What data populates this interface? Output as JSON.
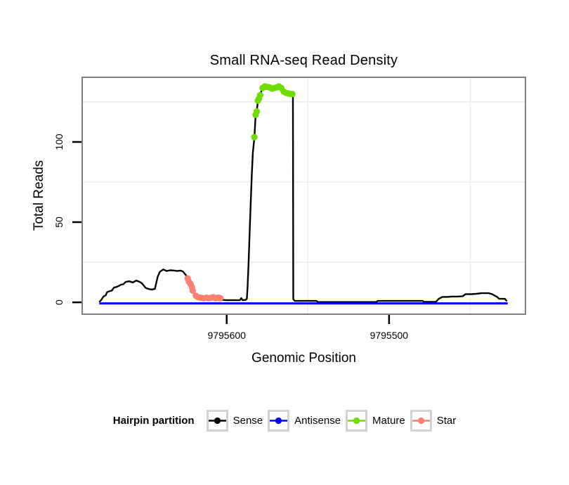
{
  "title": "Small RNA-seq Read Density",
  "x_axis": {
    "label": "Genomic Position",
    "tick_labels": [
      "9795600",
      "9795500"
    ]
  },
  "y_axis": {
    "label": "Total Reads",
    "tick_labels": [
      "0",
      "50",
      "100"
    ]
  },
  "legend": {
    "title": "Hairpin partition",
    "items": [
      {
        "label": "Sense",
        "color": "#000000"
      },
      {
        "label": "Antisense",
        "color": "#0000ff"
      },
      {
        "label": "Mature",
        "color": "#6edd00"
      },
      {
        "label": "Star",
        "color": "#fa8072"
      }
    ]
  },
  "colors": {
    "panel_border": "#7f7f7f",
    "grid": "#ededed",
    "tick": "#000000",
    "background": "#ffffff"
  },
  "chart_data": {
    "type": "line",
    "title": "Small RNA-seq Read Density",
    "xlabel": "Genomic Position",
    "ylabel": "Total Reads",
    "x_reversed": true,
    "xlim": [
      9795689,
      9795416
    ],
    "ylim": [
      -7.4,
      140.3
    ],
    "x_ticks": [
      9795600,
      9795500
    ],
    "y_ticks": [
      0,
      50,
      100
    ],
    "x_minor_grid": [
      9795550,
      9795450
    ],
    "y_minor_grid": [
      25,
      75,
      125
    ],
    "grid_on": true,
    "legend_position": "bottom",
    "series": [
      {
        "name": "Sense",
        "type": "line",
        "color": "#000000",
        "points": [
          [
            9795678.5,
            0.2
          ],
          [
            9795677.3,
            1.4
          ],
          [
            9795675.9,
            3.6
          ],
          [
            9795674.5,
            4.4
          ],
          [
            9795673.7,
            6.3
          ],
          [
            9795672.3,
            6.9
          ],
          [
            9795670.8,
            7.3
          ],
          [
            9795669.4,
            9.2
          ],
          [
            9795668.0,
            9.5
          ],
          [
            9795666.5,
            10.2
          ],
          [
            9795665.1,
            11.0
          ],
          [
            9795663.6,
            11.3
          ],
          [
            9795662.2,
            12.7
          ],
          [
            9795660.0,
            13.1
          ],
          [
            9795657.8,
            12.4
          ],
          [
            9795655.7,
            13.6
          ],
          [
            9795653.5,
            12.7
          ],
          [
            9795652.1,
            11.7
          ],
          [
            9795649.9,
            9.0
          ],
          [
            9795647.7,
            8.2
          ],
          [
            9795646.0,
            8.0
          ],
          [
            9795644.2,
            8.4
          ],
          [
            9795642.5,
            16.0
          ],
          [
            9795641.2,
            19.0
          ],
          [
            9795639.1,
            20.5
          ],
          [
            9795636.9,
            19.5
          ],
          [
            9795634.8,
            20.0
          ],
          [
            9795632.2,
            19.8
          ],
          [
            9795630.4,
            19.5
          ],
          [
            9795628.7,
            19.8
          ],
          [
            9795627.0,
            19.3
          ],
          [
            9795625.2,
            17.0
          ],
          [
            9795623.9,
            14.9
          ],
          [
            9795623.1,
            12.8
          ],
          [
            9795622.2,
            11.4
          ],
          [
            9795621.4,
            9.5
          ],
          [
            9795620.7,
            7.3
          ],
          [
            9795620.1,
            5.5
          ],
          [
            9795619.2,
            4.1
          ],
          [
            9795617.5,
            3.2
          ],
          [
            9795616.2,
            2.9
          ],
          [
            9795614.4,
            2.6
          ],
          [
            9795612.7,
            2.9
          ],
          [
            9795611.0,
            2.6
          ],
          [
            9795609.2,
            2.9
          ],
          [
            9795608.4,
            3.2
          ],
          [
            9795606.6,
            2.6
          ],
          [
            9795605.3,
            2.9
          ],
          [
            9795604.0,
            2.6
          ],
          [
            9795602.7,
            1.5
          ],
          [
            9795600.0,
            1.3
          ],
          [
            9795594.1,
            1.3
          ],
          [
            9795591.9,
            1.3
          ],
          [
            9795591.0,
            2.6
          ],
          [
            9795590.2,
            1.3
          ],
          [
            9795588.4,
            1.5
          ],
          [
            9795587.6,
            2.2
          ],
          [
            9795587.1,
            10.0
          ],
          [
            9795586.5,
            25.0
          ],
          [
            9795585.8,
            45.0
          ],
          [
            9795585.2,
            62.0
          ],
          [
            9795584.5,
            80.0
          ],
          [
            9795583.9,
            93.0
          ],
          [
            9795583.2,
            100.0
          ],
          [
            9795582.9,
            103.0
          ],
          [
            9795582.2,
            117.0
          ],
          [
            9795581.5,
            119.0
          ],
          [
            9795580.8,
            125.7
          ],
          [
            9795580.1,
            127.0
          ],
          [
            9795579.4,
            129.2
          ],
          [
            9795578.7,
            131.5
          ],
          [
            9795577.9,
            133.6
          ],
          [
            9795576.5,
            134.6
          ],
          [
            9795575.0,
            134.3
          ],
          [
            9795573.6,
            134.0
          ],
          [
            9795572.1,
            133.2
          ],
          [
            9795570.7,
            133.6
          ],
          [
            9795569.2,
            134.0
          ],
          [
            9795567.8,
            134.6
          ],
          [
            9795566.4,
            133.6
          ],
          [
            9795564.9,
            131.4
          ],
          [
            9795563.5,
            130.6
          ],
          [
            9795562.0,
            130.2
          ],
          [
            9795560.6,
            129.9
          ],
          [
            9795559.6,
            129.9
          ],
          [
            9795559.2,
            129.8
          ],
          [
            9795559.0,
            2.0
          ],
          [
            9795558.1,
            0.9
          ],
          [
            9795544.7,
            0.9
          ],
          [
            9795543.8,
            0.2
          ],
          [
            9795507.9,
            0.2
          ],
          [
            9795507.0,
            0.9
          ],
          [
            9795479.3,
            0.9
          ],
          [
            9795478.4,
            0.3
          ],
          [
            9795471.1,
            0.3
          ],
          [
            9795469.4,
            2.2
          ],
          [
            9795467.2,
            3.4
          ],
          [
            9795464.2,
            3.4
          ],
          [
            9795461.2,
            3.6
          ],
          [
            9795458.1,
            3.6
          ],
          [
            9795454.6,
            3.8
          ],
          [
            9795452.9,
            5.1
          ],
          [
            9795449.4,
            5.1
          ],
          [
            9795446.3,
            5.3
          ],
          [
            9795443.0,
            5.7
          ],
          [
            9795438.6,
            5.7
          ],
          [
            9795436.5,
            5.1
          ],
          [
            9795433.5,
            3.4
          ],
          [
            9795432.2,
            2.2
          ],
          [
            9795428.7,
            2.2
          ],
          [
            9795427.4,
            0.7
          ]
        ]
      },
      {
        "name": "Antisense",
        "type": "line",
        "color": "#0000ff",
        "points": [
          [
            9795678.5,
            0
          ],
          [
            9795426.9,
            0
          ]
        ]
      },
      {
        "name": "Mature",
        "type": "points",
        "color": "#6edd00",
        "points": [
          [
            9795583.0,
            103.0
          ],
          [
            9795582.2,
            117.0
          ],
          [
            9795581.5,
            119.0
          ],
          [
            9795580.8,
            125.7
          ],
          [
            9795580.1,
            127.0
          ],
          [
            9795579.4,
            129.2
          ],
          [
            9795577.9,
            133.6
          ],
          [
            9795576.5,
            134.6
          ],
          [
            9795575.0,
            134.3
          ],
          [
            9795573.6,
            134.0
          ],
          [
            9795572.1,
            133.2
          ],
          [
            9795570.7,
            133.6
          ],
          [
            9795569.2,
            134.0
          ],
          [
            9795567.8,
            134.6
          ],
          [
            9795566.4,
            133.6
          ],
          [
            9795564.9,
            131.4
          ],
          [
            9795563.5,
            130.6
          ],
          [
            9795562.0,
            130.2
          ],
          [
            9795560.6,
            129.9
          ],
          [
            9795559.6,
            129.9
          ]
        ]
      },
      {
        "name": "Star",
        "type": "points",
        "color": "#fa8072",
        "points": [
          [
            9795624.0,
            14.9
          ],
          [
            9795623.3,
            12.8
          ],
          [
            9795622.3,
            11.4
          ],
          [
            9795621.4,
            9.5
          ],
          [
            9795620.9,
            7.3
          ],
          [
            9795619.0,
            4.1
          ],
          [
            9795617.6,
            3.2
          ],
          [
            9795616.1,
            2.9
          ],
          [
            9795614.3,
            2.6
          ],
          [
            9795612.5,
            2.9
          ],
          [
            9795611.1,
            2.6
          ],
          [
            9795609.3,
            2.9
          ],
          [
            9795608.2,
            3.2
          ],
          [
            9795606.7,
            2.6
          ],
          [
            9795605.3,
            2.9
          ],
          [
            9795603.9,
            2.6
          ]
        ]
      }
    ]
  }
}
